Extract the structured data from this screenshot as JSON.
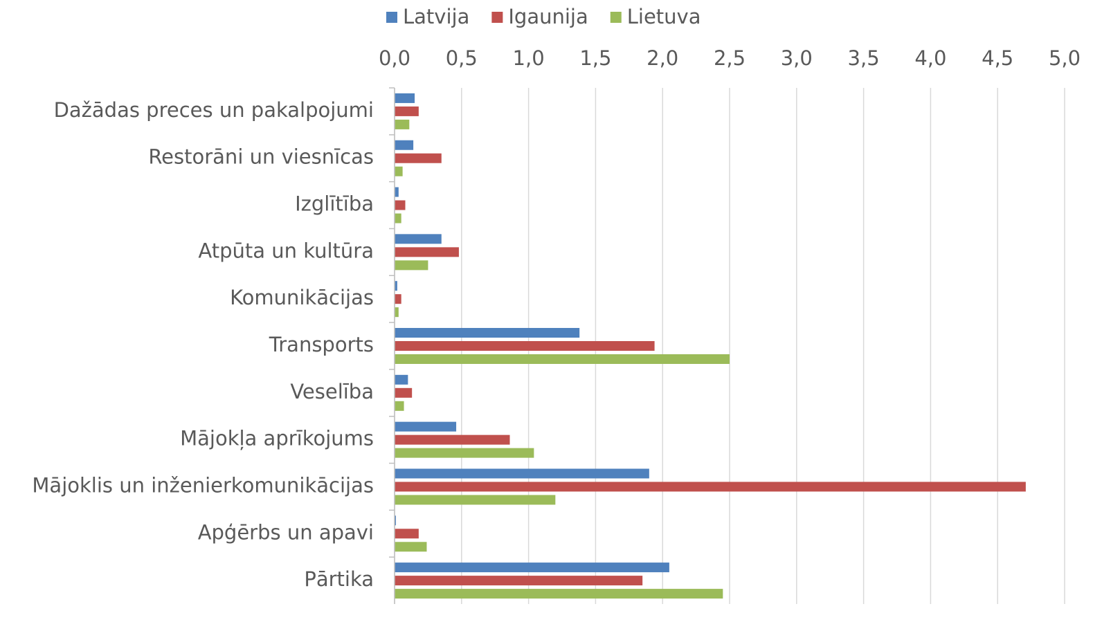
{
  "chart_data": {
    "type": "hbar",
    "categories": [
      "Dažādas preces un pakalpojumi",
      "Restorāni un viesnīcas",
      "Izglītība",
      "Atpūta un kultūra",
      "Komunikācijas",
      "Transports",
      "Veselība",
      "Mājokļa aprīkojums",
      "Mājoklis un inženierkomunikācijas",
      "Apģērbs un apavi",
      "Pārtika"
    ],
    "series": [
      {
        "name": "Latvija",
        "color": "#4f81bd",
        "values": [
          0.15,
          0.14,
          0.03,
          0.35,
          0.02,
          1.38,
          0.1,
          0.46,
          1.9,
          0.01,
          2.05
        ]
      },
      {
        "name": "Igaunija",
        "color": "#c0504d",
        "values": [
          0.18,
          0.35,
          0.08,
          0.48,
          0.05,
          1.94,
          0.13,
          0.86,
          4.71,
          0.18,
          1.85
        ]
      },
      {
        "name": "Lietuva",
        "color": "#9bbb59",
        "values": [
          0.11,
          0.06,
          0.05,
          0.25,
          0.03,
          2.5,
          0.07,
          1.04,
          1.2,
          0.24,
          2.45
        ]
      }
    ],
    "xlim": [
      0,
      5
    ],
    "xticks": [
      {
        "value": 0,
        "label": "0,0"
      },
      {
        "value": 0.5,
        "label": "0,5"
      },
      {
        "value": 1,
        "label": "1,0"
      },
      {
        "value": 1.5,
        "label": "1,5"
      },
      {
        "value": 2,
        "label": "2,0"
      },
      {
        "value": 2.5,
        "label": "2,5"
      },
      {
        "value": 3,
        "label": "3,0"
      },
      {
        "value": 3.5,
        "label": "3,5"
      },
      {
        "value": 4,
        "label": "4,0"
      },
      {
        "value": 4.5,
        "label": "4,5"
      },
      {
        "value": 5,
        "label": "5,0"
      }
    ],
    "grid": true,
    "legend": "top"
  }
}
